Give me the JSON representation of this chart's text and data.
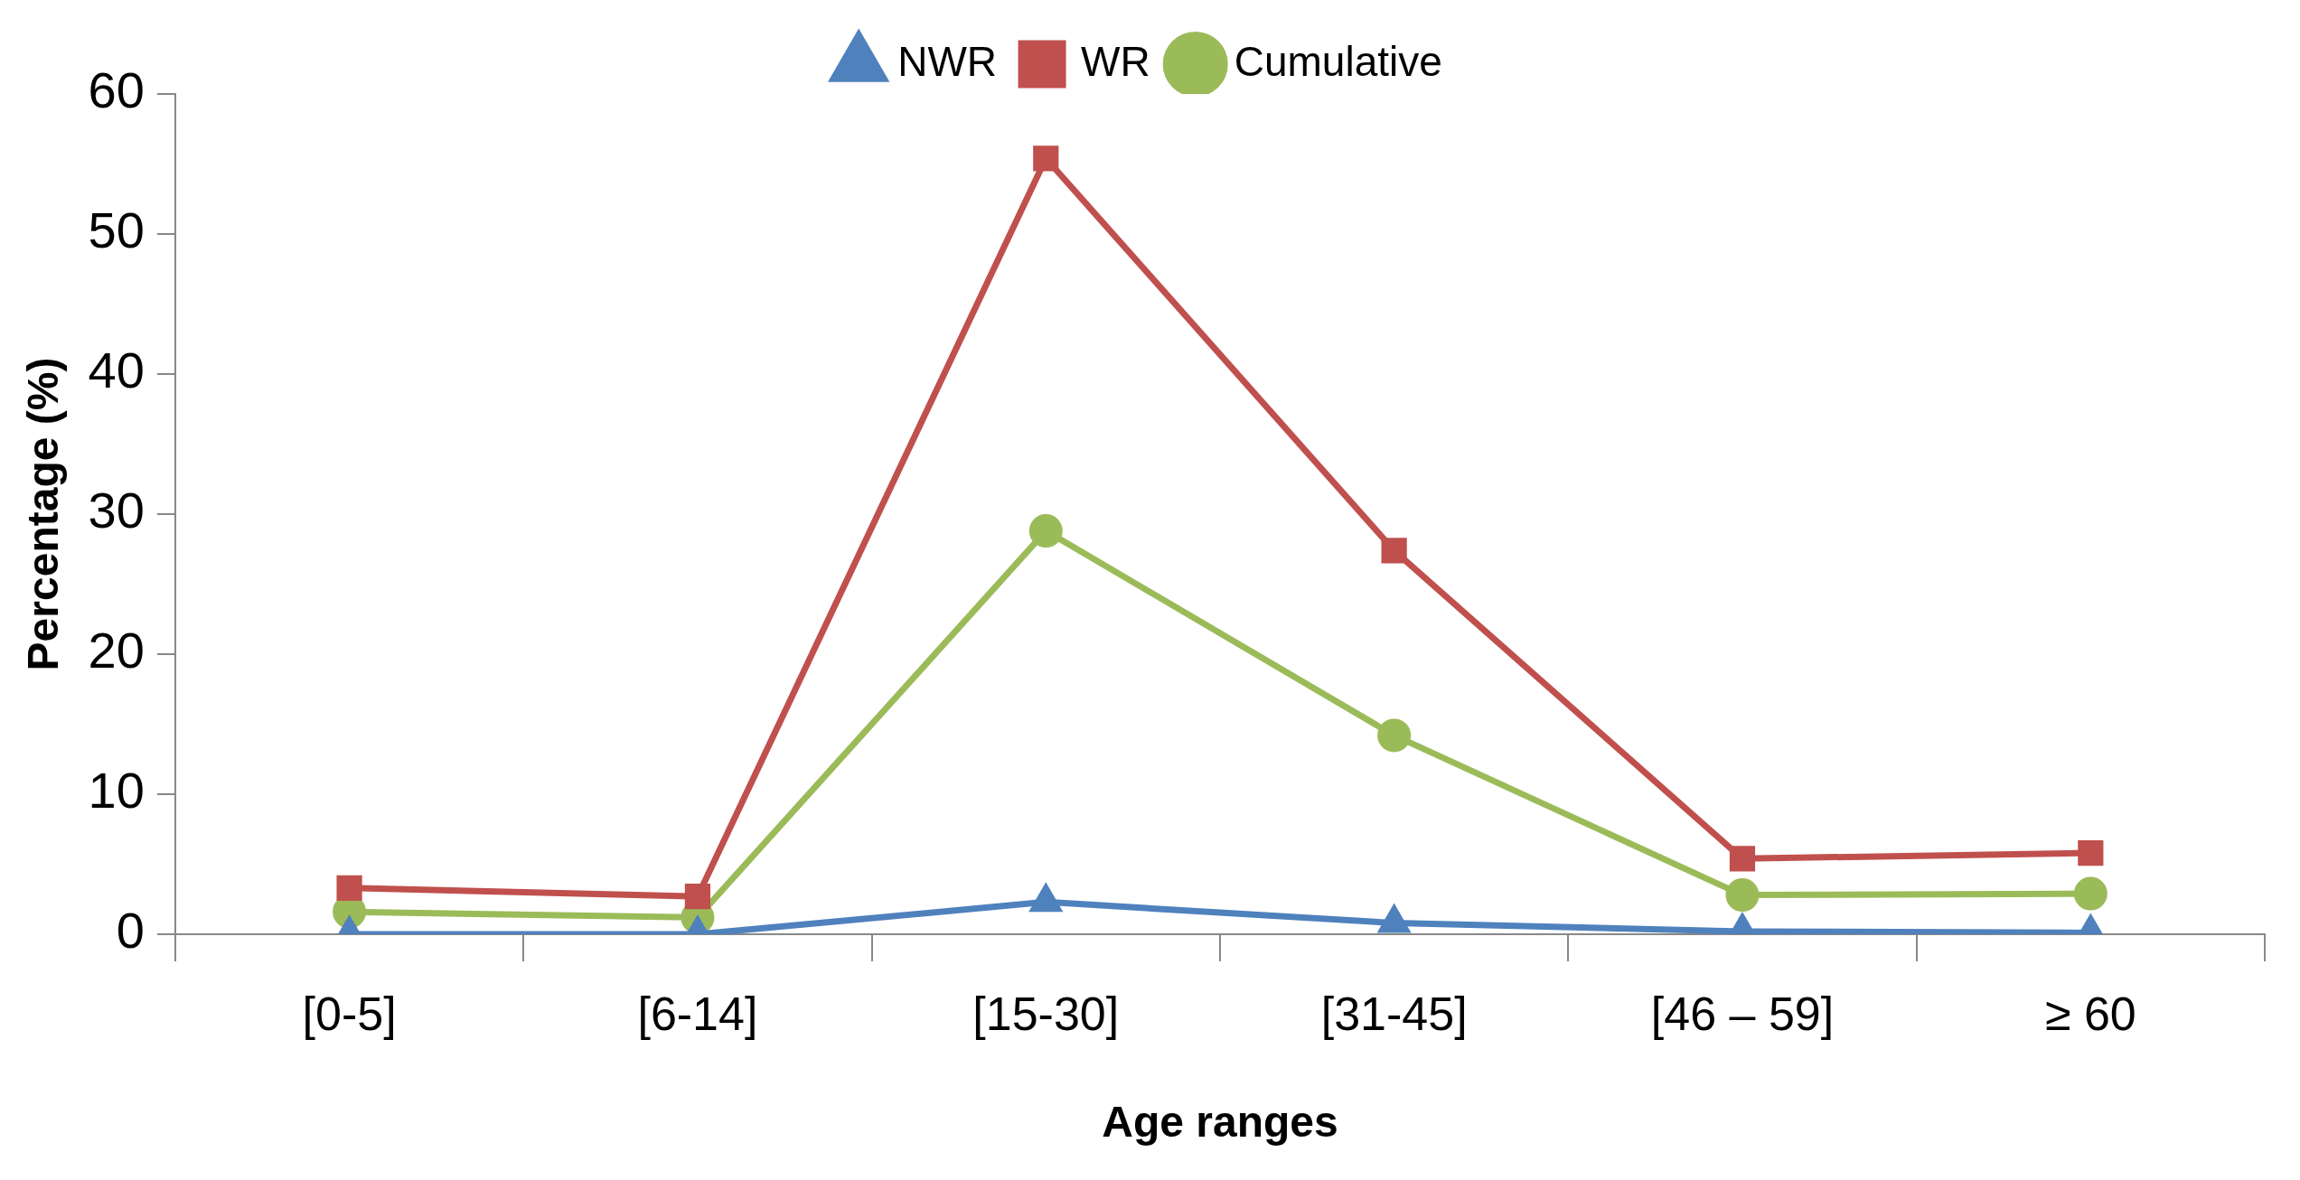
{
  "chart_data": {
    "type": "line",
    "xlabel": "Age ranges",
    "ylabel": "Percentage (%)",
    "categories": [
      "[0-5]",
      "[6-14]",
      "[15-30]",
      "[31-45]",
      "[46 – 59]",
      "≥ 60"
    ],
    "series": [
      {
        "name": "NWR",
        "color": "#4f81bd",
        "marker": "triangle",
        "values": [
          0,
          0,
          2.3,
          0.8,
          0.2,
          0.1
        ]
      },
      {
        "name": "WR",
        "color": "#c0504d",
        "marker": "square",
        "values": [
          3.3,
          2.7,
          55.4,
          27.4,
          5.4,
          5.8
        ]
      },
      {
        "name": "Cumulative",
        "color": "#9bbb59",
        "marker": "circle",
        "values": [
          1.6,
          1.2,
          28.8,
          14.2,
          2.8,
          2.9
        ]
      }
    ],
    "ylim": [
      0,
      60
    ],
    "yticks": [
      0,
      10,
      20,
      30,
      40,
      50,
      60
    ],
    "legend": "top"
  }
}
